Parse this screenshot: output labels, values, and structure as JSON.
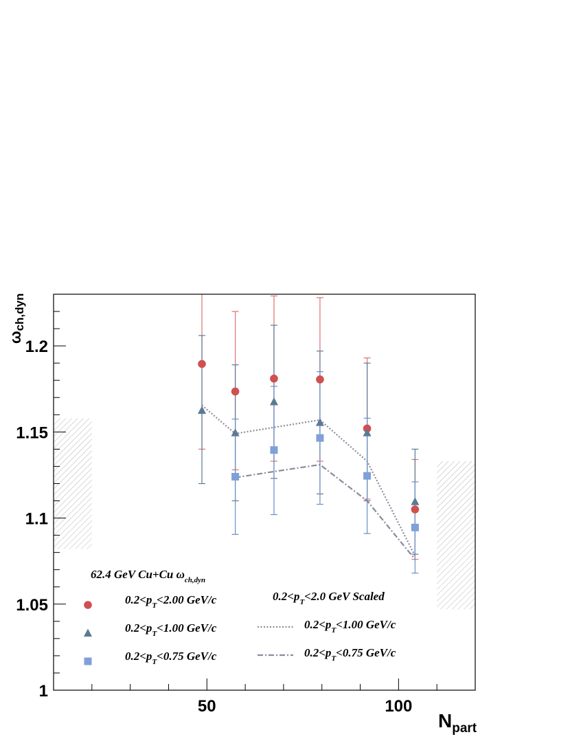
{
  "chart_data": {
    "type": "scatter",
    "title": "",
    "xlabel": "N",
    "xlabel_sub": "part",
    "ylabel": "ω",
    "ylabel_sub": "ch,dyn",
    "xlim": [
      10,
      120
    ],
    "ylim": [
      1.0,
      1.23
    ],
    "x_ticks": [
      50,
      100
    ],
    "x_tick_labels": [
      "50",
      "100"
    ],
    "y_ticks": [
      1.0,
      1.05,
      1.1,
      1.15,
      1.2
    ],
    "y_tick_labels": [
      "1",
      "1.05",
      "1.1",
      "1.15",
      "1.2"
    ],
    "grid": false,
    "colors": {
      "circle": "#d05050",
      "circle_err": "#e07070",
      "triangle": "#5b7a94",
      "square": "#7fa0d8",
      "square_err": "#6a8ec8",
      "line": "#8a8a9a",
      "hatch": "#b5b5b5"
    },
    "legend": {
      "header": {
        "pre": "62.4 GeV Cu+Cu ω",
        "sub": "ch,dyn"
      },
      "entries": [
        {
          "marker": "circle",
          "pre": "0.2<p",
          "sub": "T",
          "post": "<2.00 GeV/c"
        },
        {
          "marker": "triangle",
          "pre": "0.2<p",
          "sub": "T",
          "post": "<1.00 GeV/c"
        },
        {
          "marker": "square",
          "pre": "0.2<p",
          "sub": "T",
          "post": "<0.75 GeV/c"
        }
      ],
      "scaled_header": {
        "pre": "0.2<p",
        "sub": "T",
        "post": "<2.0 GeV Scaled"
      },
      "scaled_entries": [
        {
          "style": "dotted",
          "pre": "0.2<p",
          "sub": "T",
          "post": "<1.00 GeV/c"
        },
        {
          "style": "dashdot",
          "pre": "0.2<p",
          "sub": "T",
          "post": "<0.75 GeV/c"
        }
      ]
    },
    "systematic_bands": [
      {
        "x": [
          10,
          20
        ],
        "y": [
          1.082,
          1.158
        ]
      },
      {
        "x": [
          110,
          120
        ],
        "y": [
          1.047,
          1.133
        ]
      }
    ],
    "series": [
      {
        "name": "0.2<pT<2.00 GeV/c",
        "marker": "circle",
        "points": [
          {
            "x": 48.7,
            "y": 1.1895,
            "ylo": 1.14,
            "yhi": 1.239
          },
          {
            "x": 57.4,
            "y": 1.1735,
            "ylo": 1.128,
            "yhi": 1.22
          },
          {
            "x": 67.5,
            "y": 1.181,
            "ylo": 1.133,
            "yhi": 1.229
          },
          {
            "x": 79.5,
            "y": 1.1805,
            "ylo": 1.133,
            "yhi": 1.228
          },
          {
            "x": 91.8,
            "y": 1.152,
            "ylo": 1.111,
            "yhi": 1.193
          },
          {
            "x": 104.3,
            "y": 1.105,
            "ylo": 1.076,
            "yhi": 1.134
          }
        ]
      },
      {
        "name": "0.2<pT<1.00 GeV/c",
        "marker": "triangle",
        "points": [
          {
            "x": 48.7,
            "y": 1.1625,
            "ylo": 1.12,
            "yhi": 1.206
          },
          {
            "x": 57.4,
            "y": 1.1495,
            "ylo": 1.11,
            "yhi": 1.189
          },
          {
            "x": 67.5,
            "y": 1.1675,
            "ylo": 1.123,
            "yhi": 1.212
          },
          {
            "x": 79.5,
            "y": 1.1555,
            "ylo": 1.114,
            "yhi": 1.197
          },
          {
            "x": 91.8,
            "y": 1.1495,
            "ylo": 1.11,
            "yhi": 1.19
          },
          {
            "x": 104.3,
            "y": 1.1095,
            "ylo": 1.079,
            "yhi": 1.14
          }
        ]
      },
      {
        "name": "0.2<pT<0.75 GeV/c",
        "marker": "square",
        "points": [
          {
            "x": 57.4,
            "y": 1.124,
            "ylo": 1.0905,
            "yhi": 1.1575
          },
          {
            "x": 67.5,
            "y": 1.1395,
            "ylo": 1.102,
            "yhi": 1.1765
          },
          {
            "x": 79.5,
            "y": 1.1465,
            "ylo": 1.108,
            "yhi": 1.185
          },
          {
            "x": 91.8,
            "y": 1.1245,
            "ylo": 1.091,
            "yhi": 1.158
          },
          {
            "x": 104.3,
            "y": 1.0945,
            "ylo": 1.068,
            "yhi": 1.121
          }
        ]
      },
      {
        "name": "Scaled 0.2<pT<1.00 GeV/c",
        "style": "dotted",
        "x": [
          48.7,
          57.4,
          79.5,
          91.8,
          104.3
        ],
        "y": [
          1.1655,
          1.149,
          1.157,
          1.133,
          1.078
        ]
      },
      {
        "name": "Scaled 0.2<pT<0.75 GeV/c",
        "style": "dashdot",
        "x": [
          57.4,
          67.5,
          79.5,
          91.8,
          104.3
        ],
        "y": [
          1.1235,
          1.127,
          1.131,
          1.11,
          1.076
        ]
      }
    ]
  }
}
